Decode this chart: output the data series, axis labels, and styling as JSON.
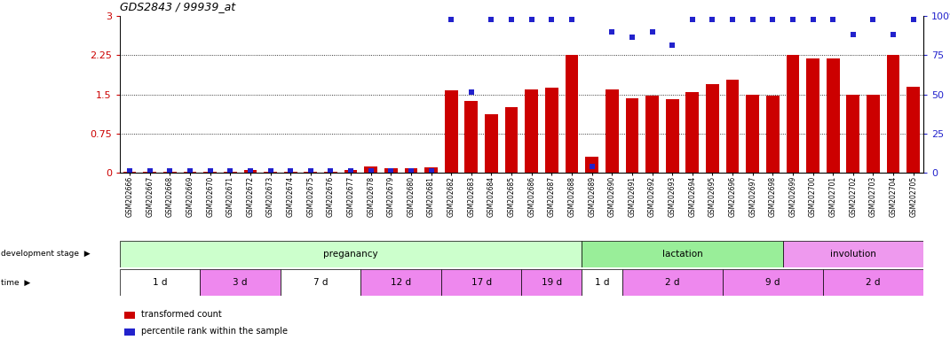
{
  "title": "GDS2843 / 99939_at",
  "samples": [
    "GSM202666",
    "GSM202667",
    "GSM202668",
    "GSM202669",
    "GSM202670",
    "GSM202671",
    "GSM202672",
    "GSM202673",
    "GSM202674",
    "GSM202675",
    "GSM202676",
    "GSM202677",
    "GSM202678",
    "GSM202679",
    "GSM202680",
    "GSM202681",
    "GSM202682",
    "GSM202683",
    "GSM202684",
    "GSM202685",
    "GSM202686",
    "GSM202687",
    "GSM202688",
    "GSM202689",
    "GSM202690",
    "GSM202691",
    "GSM202692",
    "GSM202693",
    "GSM202694",
    "GSM202695",
    "GSM202696",
    "GSM202697",
    "GSM202698",
    "GSM202699",
    "GSM202700",
    "GSM202701",
    "GSM202702",
    "GSM202703",
    "GSM202704",
    "GSM202705"
  ],
  "bar_values": [
    0.02,
    0.02,
    0.02,
    0.02,
    0.02,
    0.02,
    0.05,
    0.02,
    0.02,
    0.02,
    0.02,
    0.05,
    0.12,
    0.08,
    0.08,
    0.1,
    1.57,
    1.37,
    1.12,
    1.25,
    1.6,
    1.63,
    2.25,
    0.3,
    1.6,
    1.42,
    1.47,
    1.4,
    1.55,
    1.7,
    1.78,
    1.5,
    1.48,
    2.25,
    2.18,
    2.18,
    1.5,
    1.5,
    2.25,
    1.65
  ],
  "percentile_values_scaled": [
    0.03,
    0.03,
    0.03,
    0.03,
    0.03,
    0.03,
    0.03,
    0.03,
    0.03,
    0.03,
    0.03,
    0.03,
    0.03,
    0.03,
    0.03,
    0.03,
    2.93,
    1.55,
    2.93,
    2.93,
    2.93,
    2.93,
    2.93,
    0.12,
    2.7,
    2.6,
    2.7,
    2.45,
    2.93,
    2.93,
    2.93,
    2.93,
    2.93,
    2.93,
    2.93,
    2.93,
    2.65,
    2.93,
    2.65,
    2.93
  ],
  "ylim_left": [
    0,
    3.0
  ],
  "ylim_right": [
    0,
    100
  ],
  "yticks_left": [
    0,
    0.75,
    1.5,
    2.25,
    3.0
  ],
  "ytick_labels_left": [
    "0",
    "0.75",
    "1.5",
    "2.25",
    "3"
  ],
  "yticks_right": [
    0,
    25,
    50,
    75,
    100
  ],
  "ytick_labels_right": [
    "0",
    "25",
    "50",
    "75",
    "100%"
  ],
  "bar_color": "#cc0000",
  "dot_color": "#2222cc",
  "grid_lines": [
    0.75,
    1.5,
    2.25
  ],
  "development_stages": [
    {
      "label": "preganancy",
      "start": 0,
      "end": 23,
      "color": "#ccffcc"
    },
    {
      "label": "lactation",
      "start": 23,
      "end": 33,
      "color": "#99ee99"
    },
    {
      "label": "involution",
      "start": 33,
      "end": 40,
      "color": "#ee99ee"
    }
  ],
  "time_groups": [
    {
      "label": "1 d",
      "start": 0,
      "end": 4,
      "color": "#ffffff"
    },
    {
      "label": "3 d",
      "start": 4,
      "end": 8,
      "color": "#ee88ee"
    },
    {
      "label": "7 d",
      "start": 8,
      "end": 12,
      "color": "#ffffff"
    },
    {
      "label": "12 d",
      "start": 12,
      "end": 16,
      "color": "#ee88ee"
    },
    {
      "label": "17 d",
      "start": 16,
      "end": 20,
      "color": "#ee88ee"
    },
    {
      "label": "19 d",
      "start": 20,
      "end": 23,
      "color": "#ee88ee"
    },
    {
      "label": "1 d",
      "start": 23,
      "end": 25,
      "color": "#ffffff"
    },
    {
      "label": "2 d",
      "start": 25,
      "end": 30,
      "color": "#ee88ee"
    },
    {
      "label": "9 d",
      "start": 30,
      "end": 35,
      "color": "#ee88ee"
    },
    {
      "label": "2 d",
      "start": 35,
      "end": 40,
      "color": "#ee88ee"
    }
  ],
  "legend_items": [
    {
      "label": "transformed count",
      "color": "#cc0000"
    },
    {
      "label": "percentile rank within the sample",
      "color": "#2222cc"
    }
  ],
  "fig_width": 10.7,
  "fig_height": 3.84,
  "dpi": 100
}
